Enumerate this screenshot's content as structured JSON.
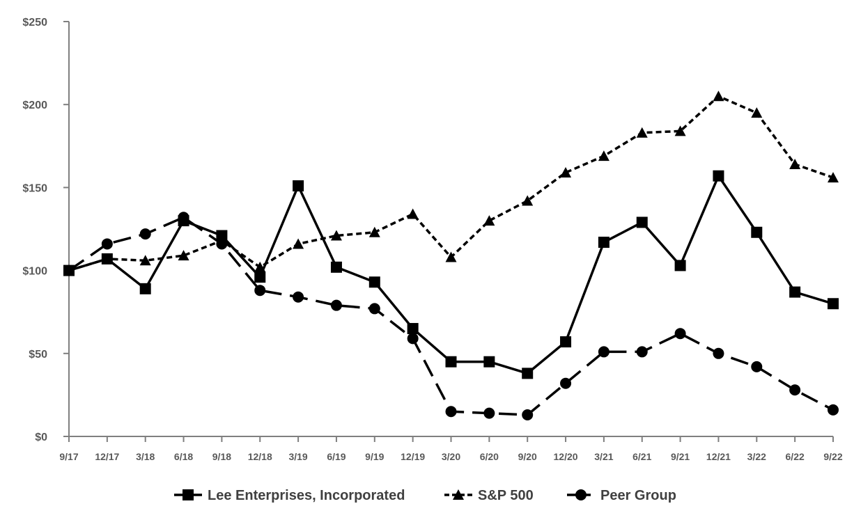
{
  "chart_data": {
    "type": "line",
    "title": "",
    "xlabel": "",
    "ylabel": "",
    "categories": [
      "9/17",
      "12/17",
      "3/18",
      "6/18",
      "9/18",
      "12/18",
      "3/19",
      "6/19",
      "9/19",
      "12/19",
      "3/20",
      "6/20",
      "9/20",
      "12/20",
      "3/21",
      "6/21",
      "9/21",
      "12/21",
      "3/22",
      "6/22",
      "9/22"
    ],
    "ylim": [
      0,
      250
    ],
    "y_ticks": [
      0,
      50,
      100,
      150,
      200,
      250
    ],
    "y_tick_labels": [
      "$0",
      "$50",
      "$100",
      "$150",
      "$200",
      "$250"
    ],
    "grid": false,
    "legend_position": "bottom",
    "series": [
      {
        "name": "Lee Enterprises, Incorporated",
        "marker": "square",
        "dash": "solid",
        "color": "#000000",
        "values": [
          100,
          107,
          89,
          130,
          121,
          96,
          151,
          102,
          93,
          65,
          45,
          45,
          38,
          57,
          117,
          129,
          103,
          157,
          123,
          87,
          80
        ]
      },
      {
        "name": "S&P 500",
        "marker": "triangle",
        "dash": "short-dash",
        "color": "#000000",
        "values": [
          100,
          107,
          106,
          109,
          118,
          102,
          116,
          121,
          123,
          134,
          108,
          130,
          142,
          159,
          169,
          183,
          184,
          205,
          195,
          164,
          156
        ]
      },
      {
        "name": "Peer Group",
        "marker": "circle",
        "dash": "long-dash",
        "color": "#000000",
        "values": [
          100,
          116,
          122,
          132,
          116,
          88,
          84,
          79,
          77,
          59,
          15,
          14,
          13,
          32,
          51,
          51,
          62,
          50,
          42,
          28,
          16
        ]
      }
    ]
  }
}
